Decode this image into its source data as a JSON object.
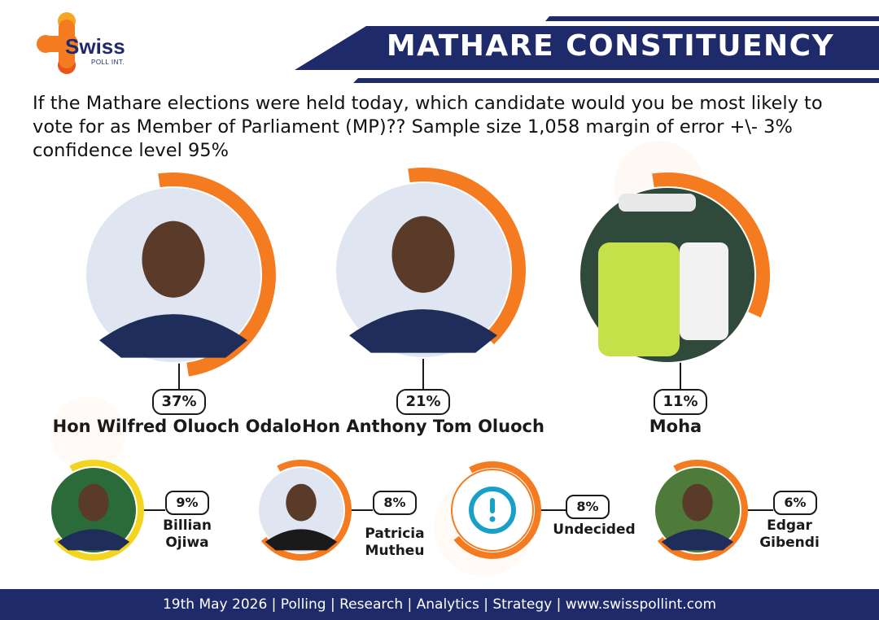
{
  "brand": {
    "logo_text": "Swiss",
    "logo_sub": "POLL INT.",
    "navy": "#1f2a6b",
    "orange": "#f47b20",
    "yellow": "#f2d51c"
  },
  "header": {
    "title": "MATHARE CONSTITUENCY"
  },
  "question": "If the Mathare elections were held today, which candidate would you be most likely to vote for as Member of Parliament (MP)?? Sample size 1,058 margin of error +\\- 3% confidence level 95%",
  "footer": {
    "text": "19th May 2026 | Polling | Research | Analytics | Strategy | www.swisspollint.com"
  },
  "chart_data": {
    "type": "bar",
    "unit": "%",
    "categories": [
      "Hon Wilfred Oluoch Odalo",
      "Hon Anthony Tom Oluoch",
      "Moha",
      "Billian Ojiwa",
      "Patricia Mutheu",
      "Undecided",
      "Edgar Gibendi"
    ],
    "values": [
      37,
      21,
      11,
      9,
      8,
      8,
      6
    ],
    "labels": [
      "37%",
      "21%",
      "11%",
      "9%",
      "8%",
      "8%",
      "6%"
    ],
    "name_lines": [
      [
        "Hon Wilfred Oluoch Odalo"
      ],
      [
        "Hon Anthony Tom Oluoch"
      ],
      [
        "Moha"
      ],
      [
        "Billian",
        "Ojiwa"
      ],
      [
        "Patricia",
        "Mutheu"
      ],
      [
        "Undecided"
      ],
      [
        "Edgar",
        "Gibendi"
      ]
    ],
    "ring_colors": [
      "#f47b20",
      "#f47b20",
      "#f47b20",
      "#f2d51c",
      "#f47b20",
      "#f47b20",
      "#f47b20"
    ],
    "icons": [
      "portrait-photo",
      "portrait-photo",
      "team-vest-photo",
      "portrait-photo",
      "portrait-photo",
      "exclamation-icon",
      "portrait-photo"
    ]
  }
}
